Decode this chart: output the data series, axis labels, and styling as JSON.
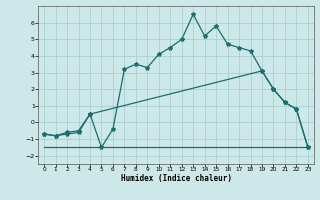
{
  "xlabel": "Humidex (Indice chaleur)",
  "background_color": "#cce8e8",
  "grid_color": "#aacfcf",
  "line_color": "#1a6e6e",
  "xlim": [
    -0.5,
    23.5
  ],
  "ylim": [
    -2.5,
    7.0
  ],
  "yticks": [
    -2,
    -1,
    0,
    1,
    2,
    3,
    4,
    5,
    6
  ],
  "xticks": [
    0,
    1,
    2,
    3,
    4,
    5,
    6,
    7,
    8,
    9,
    10,
    11,
    12,
    13,
    14,
    15,
    16,
    17,
    18,
    19,
    20,
    21,
    22,
    23
  ],
  "line1_x": [
    0,
    1,
    2,
    3,
    4,
    5,
    6,
    7,
    8,
    9,
    10,
    11,
    12,
    13,
    14,
    15,
    16,
    17,
    18,
    19,
    20,
    21,
    22,
    23
  ],
  "line1_y": [
    -0.7,
    -0.8,
    -0.7,
    -0.6,
    0.5,
    -1.5,
    -0.4,
    3.2,
    3.5,
    3.3,
    4.1,
    4.5,
    5.0,
    6.5,
    5.2,
    5.8,
    4.7,
    4.5,
    4.3,
    3.1,
    2.0,
    1.2,
    0.8,
    -1.5
  ],
  "line2_x": [
    0,
    1,
    2,
    3,
    4,
    19,
    20,
    21,
    22,
    23
  ],
  "line2_y": [
    -0.7,
    -0.8,
    -0.6,
    -0.5,
    0.5,
    3.1,
    2.0,
    1.2,
    0.8,
    -1.5
  ],
  "line3_x": [
    0,
    23
  ],
  "line3_y": [
    -1.5,
    -1.5
  ]
}
